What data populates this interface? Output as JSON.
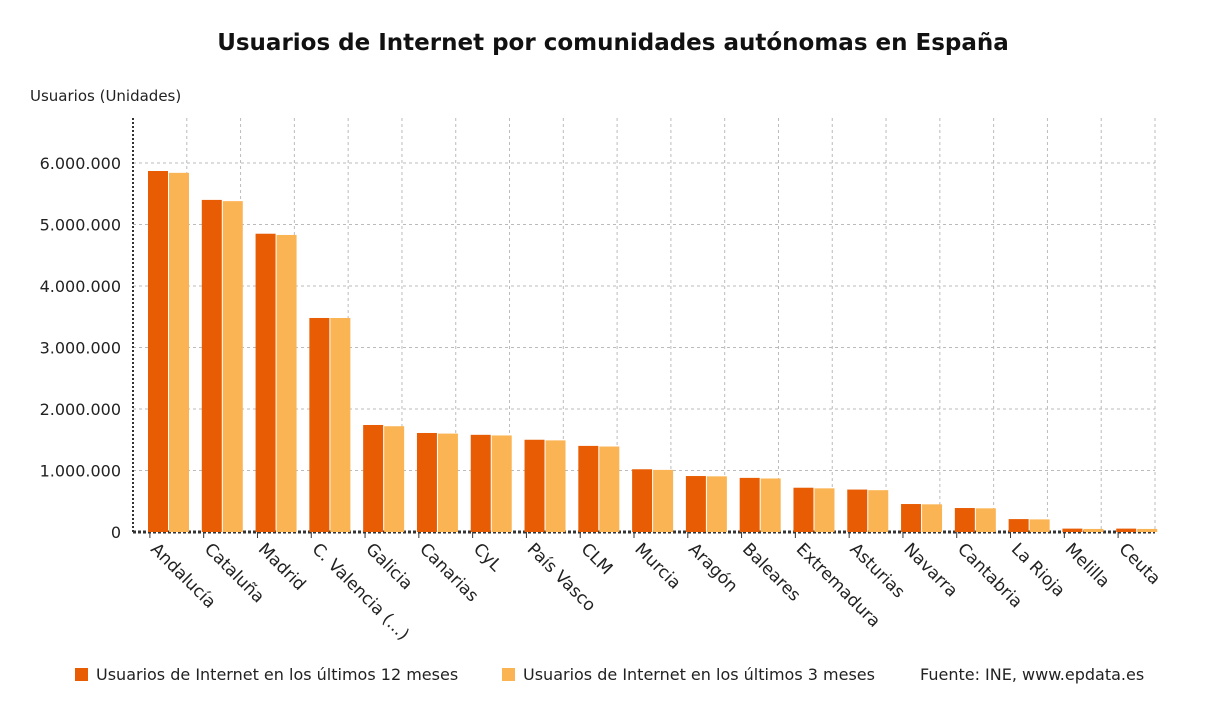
{
  "chart_data": {
    "type": "bar",
    "title": "Usuarios de Internet por comunidades autónomas en España",
    "ylabel": "Usuarios (Unidades)",
    "xlabel": "",
    "ylim": [
      0,
      6000000
    ],
    "yticks": [
      0,
      1000000,
      2000000,
      3000000,
      4000000,
      5000000,
      6000000
    ],
    "ytick_labels": [
      "0",
      "1.000.000",
      "2.000.000",
      "3.000.000",
      "4.000.000",
      "5.000.000",
      "6.000.000"
    ],
    "grid": true,
    "legend_position": "bottom",
    "categories": [
      "Andalucía",
      "Cataluña",
      "Madrid",
      "C. Valencia (...)",
      "Galicia",
      "Canarias",
      "CyL",
      "País Vasco",
      "CLM",
      "Murcia",
      "Aragón",
      "Baleares",
      "Extremadura",
      "Asturias",
      "Navarra",
      "Cantabria",
      "La Rioja",
      "Melilla",
      "Ceuta"
    ],
    "series": [
      {
        "name": "Usuarios de Internet en los últimos 12 meses",
        "color": "#e85d04",
        "values": [
          5870000,
          5400000,
          4850000,
          3480000,
          1740000,
          1610000,
          1580000,
          1500000,
          1400000,
          1020000,
          910000,
          880000,
          720000,
          690000,
          455000,
          390000,
          210000,
          55000,
          55000
        ]
      },
      {
        "name": "Usuarios de Internet en los últimos 3 meses",
        "color": "#fbb454",
        "values": [
          5840000,
          5380000,
          4830000,
          3480000,
          1720000,
          1600000,
          1570000,
          1490000,
          1390000,
          1010000,
          905000,
          870000,
          710000,
          680000,
          450000,
          385000,
          205000,
          50000,
          50000
        ]
      }
    ],
    "source": "Fuente: INE, www.epdata.es"
  }
}
